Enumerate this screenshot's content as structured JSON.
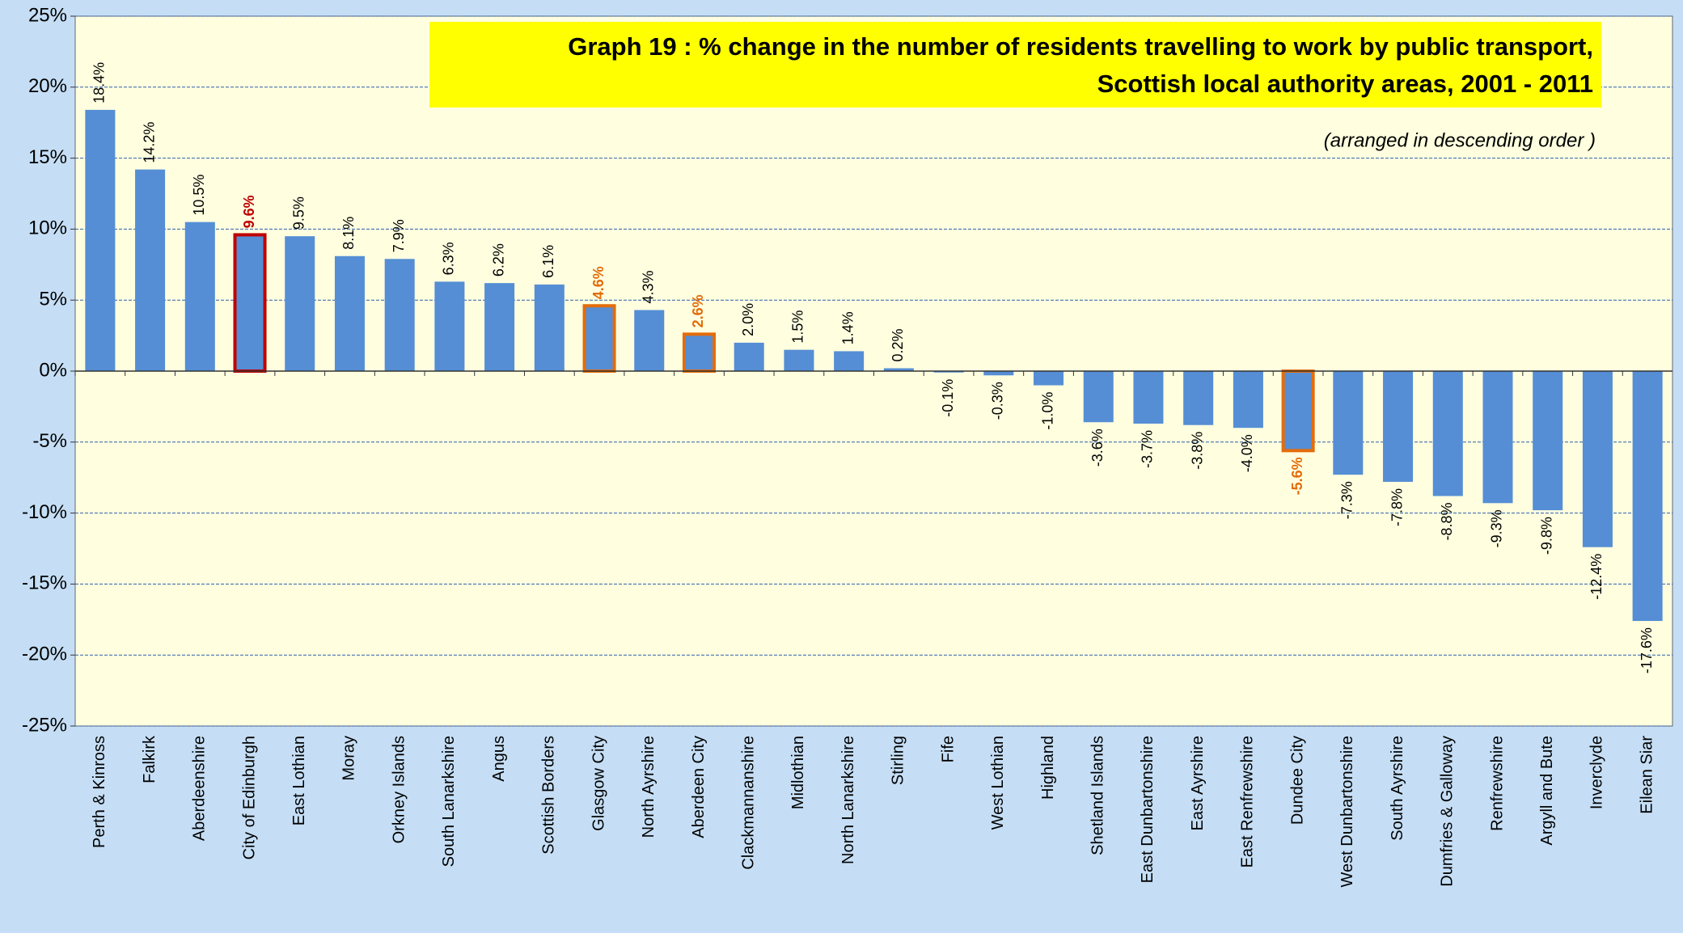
{
  "chart_data": {
    "type": "bar",
    "title": "Graph 19  :  % change in the number of residents travelling to work by public transport,",
    "subtitle": "Scottish local authority areas, 2001 - 2011",
    "note": "(arranged in descending order )",
    "categories": [
      "Perth & Kinross",
      "Falkirk",
      "Aberdeenshire",
      "City of Edinburgh",
      "East Lothian",
      "Moray",
      "Orkney Islands",
      "South Lanarkshire",
      "Angus",
      "Scottish Borders",
      "Glasgow City",
      "North Ayrshire",
      "Aberdeen City",
      "Clackmannanshire",
      "Midlothian",
      "North Lanarkshire",
      "Stirling",
      "Fife",
      "West Lothian",
      "Highland",
      "Shetland Islands",
      "East Dunbartonshire",
      "East Ayrshire",
      "East Renfrewshire",
      "Dundee City",
      "West Dunbartonshire",
      "South Ayrshire",
      "Dumfries & Galloway",
      "Renfrewshire",
      "Argyll and Bute",
      "Inverclyde",
      "Eilean Siar"
    ],
    "values": [
      18.4,
      14.2,
      10.5,
      9.6,
      9.5,
      8.1,
      7.9,
      6.3,
      6.2,
      6.1,
      4.6,
      4.3,
      2.6,
      2.0,
      1.5,
      1.4,
      0.2,
      -0.1,
      -0.3,
      -1.0,
      -3.6,
      -3.7,
      -3.8,
      -4.0,
      -5.6,
      -7.3,
      -7.8,
      -8.8,
      -9.3,
      -9.8,
      -12.4,
      -17.6
    ],
    "value_labels": [
      "18.4%",
      "14.2%",
      "10.5%",
      "9.6%",
      "9.5%",
      "8.1%",
      "7.9%",
      "6.3%",
      "6.2%",
      "6.1%",
      "4.6%",
      "4.3%",
      "2.6%",
      "2.0%",
      "1.5%",
      "1.4%",
      "0.2%",
      "-0.1%",
      "-0.3%",
      "-1.0%",
      "-3.6%",
      "-3.7%",
      "-3.8%",
      "-4.0%",
      "-5.6%",
      "-7.3%",
      "-7.8%",
      "-8.8%",
      "-9.3%",
      "-9.8%",
      "-12.4%",
      "-17.6%"
    ],
    "color": "#558ed5",
    "highlight_colors": [
      null,
      null,
      null,
      "#c00000",
      null,
      null,
      null,
      null,
      null,
      null,
      "#e46c0a",
      null,
      "#e46c0a",
      null,
      null,
      null,
      null,
      null,
      null,
      null,
      null,
      null,
      null,
      null,
      "#e46c0a",
      null,
      null,
      null,
      null,
      null,
      null,
      null
    ],
    "ylim": [
      -25,
      25
    ],
    "yticks": [
      {
        "value": -25,
        "label": "-25%"
      },
      {
        "value": -20,
        "label": "-20%"
      },
      {
        "value": -15,
        "label": "-15%"
      },
      {
        "value": -10,
        "label": "-10%"
      },
      {
        "value": -5,
        "label": "-5%"
      },
      {
        "value": 0,
        "label": "0%"
      },
      {
        "value": 5,
        "label": "5%"
      },
      {
        "value": 10,
        "label": "10%"
      },
      {
        "value": 15,
        "label": "15%"
      },
      {
        "value": 20,
        "label": "20%"
      },
      {
        "value": 25,
        "label": "25%"
      }
    ],
    "grid": true
  }
}
